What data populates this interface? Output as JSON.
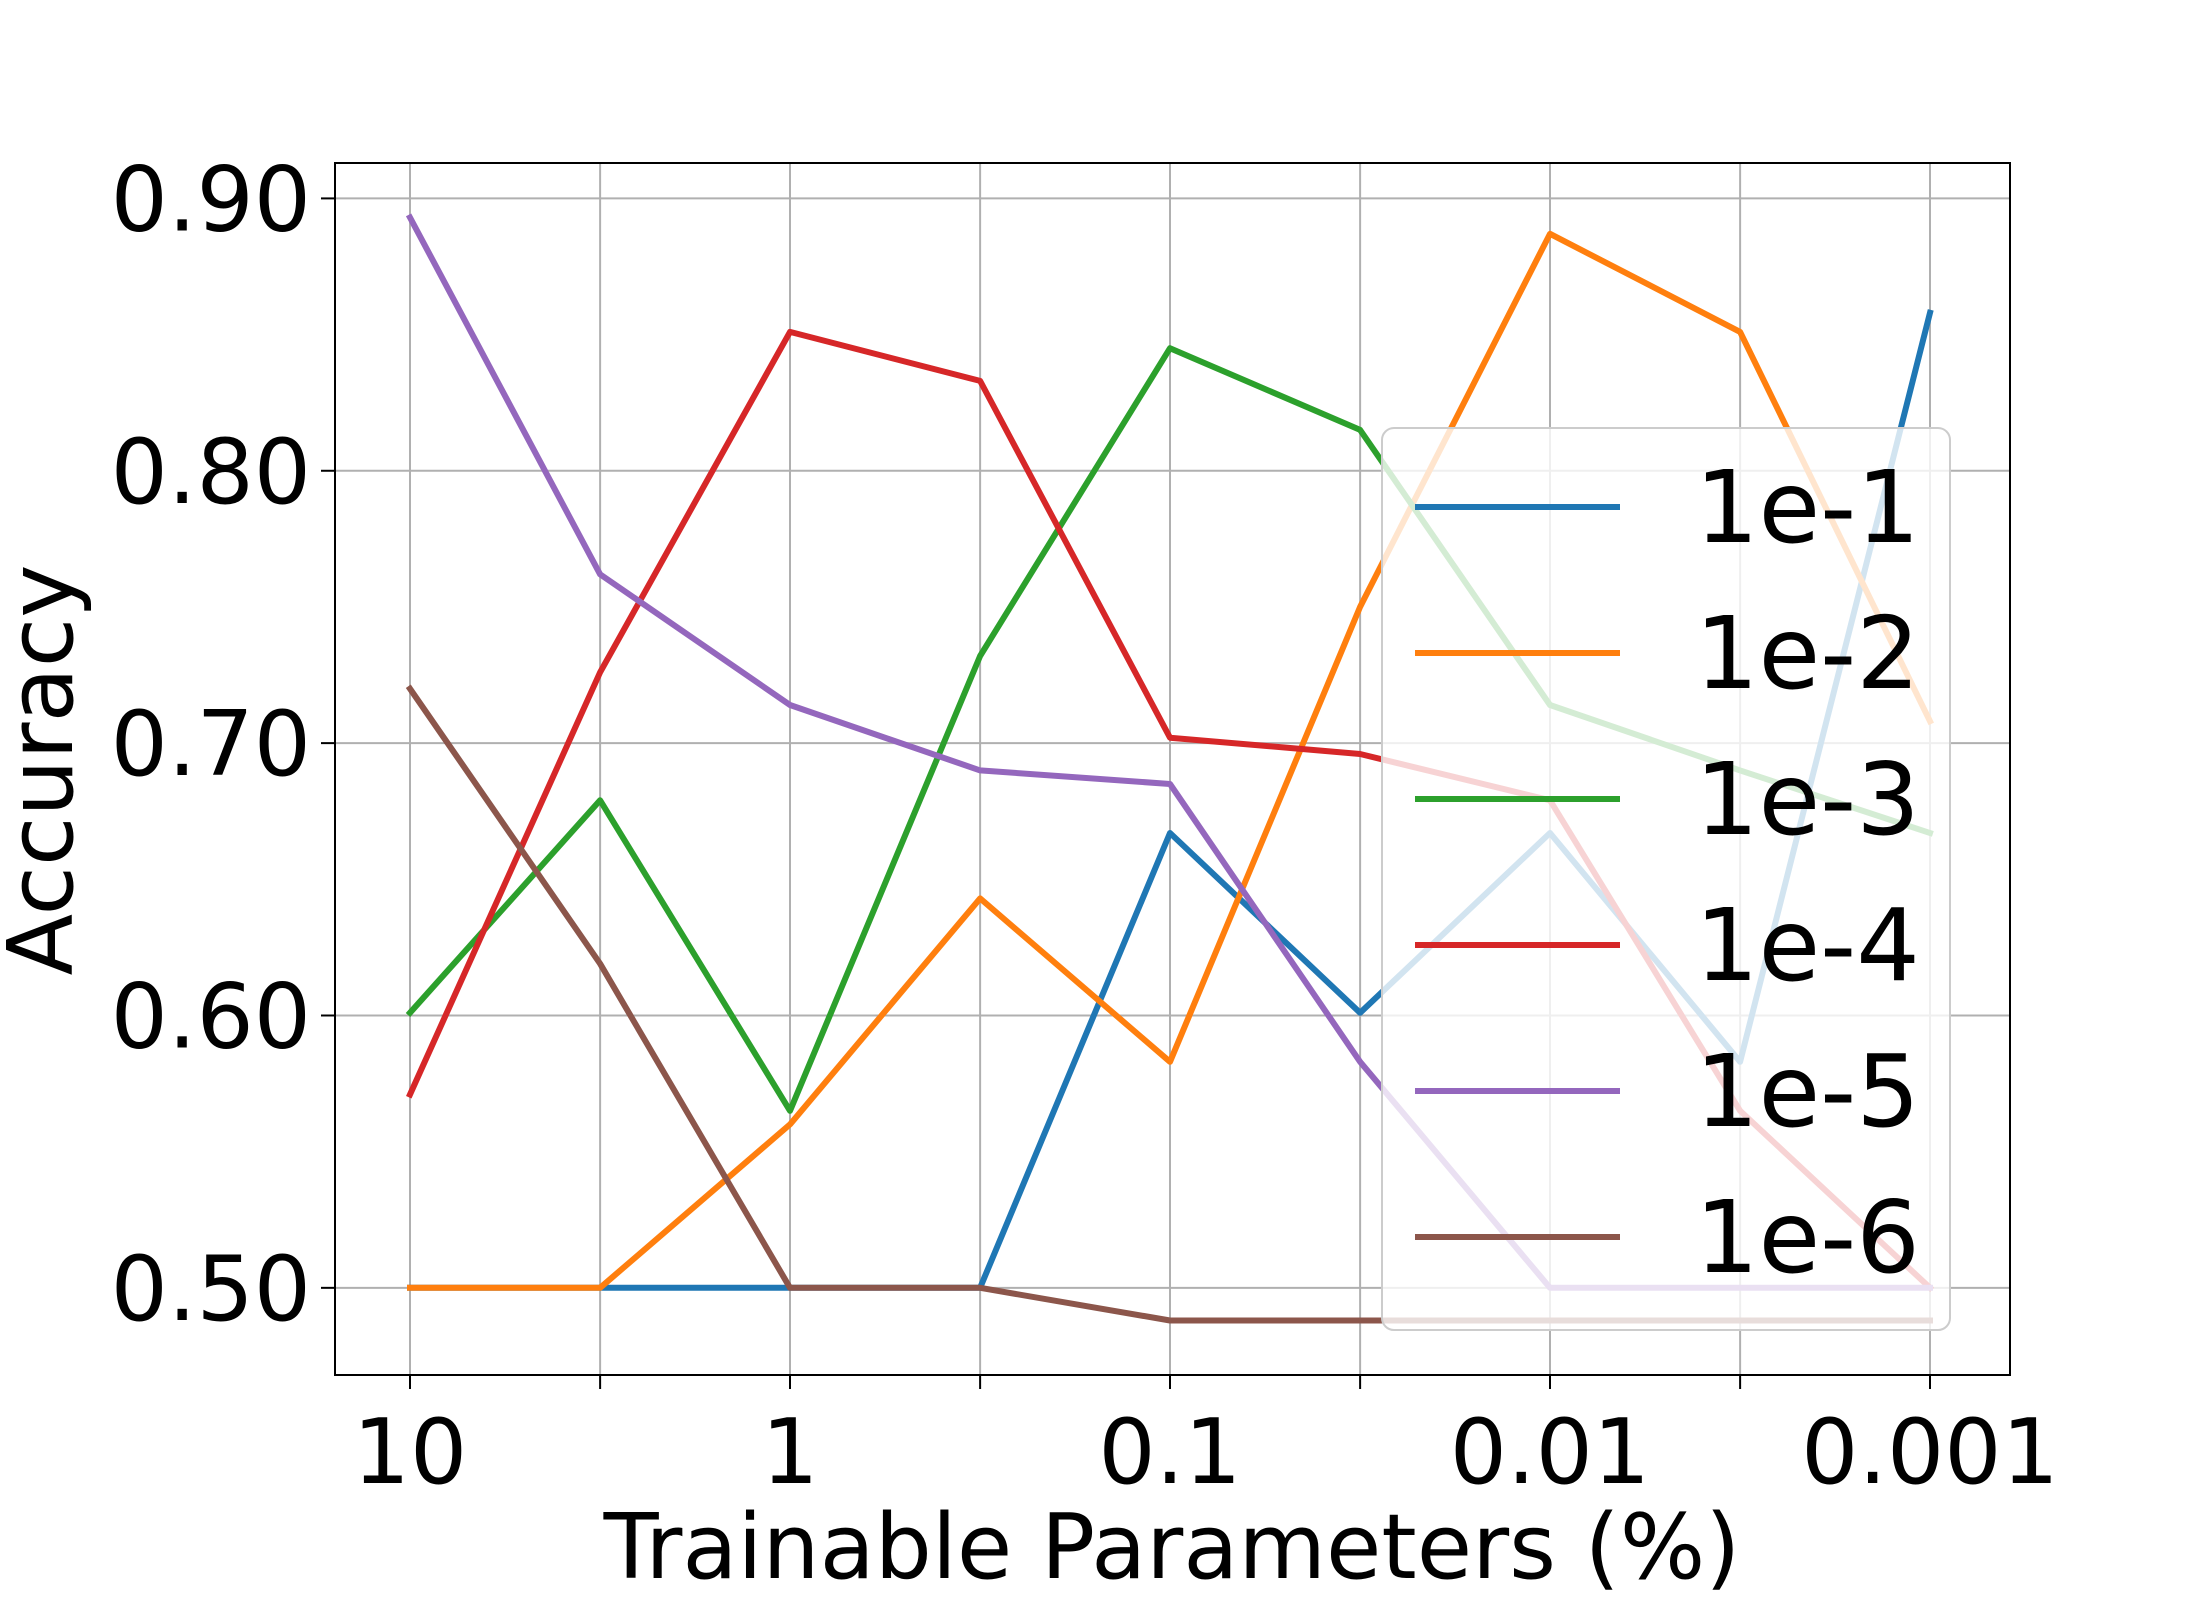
{
  "chart_data": {
    "type": "line",
    "title": "",
    "xlabel": "Trainable Parameters (%)",
    "ylabel": "Accuracy",
    "x_scale": "log",
    "x_direction": "decreasing",
    "x": [
      10,
      3.16,
      1,
      0.316,
      0.1,
      0.0316,
      0.01,
      0.00316,
      0.001
    ],
    "x_tick_values": [
      10,
      1,
      0.1,
      0.01,
      0.001
    ],
    "x_tick_labels": [
      "10",
      "1",
      "0.1",
      "0.01",
      "0.001"
    ],
    "x_minor_ticks": [
      3.16,
      0.316,
      0.0316,
      0.00316
    ],
    "ylim": [
      0.468,
      0.913
    ],
    "y_ticks": [
      0.5,
      0.6,
      0.7,
      0.8,
      0.9
    ],
    "y_tick_labels": [
      "0.50",
      "0.60",
      "0.70",
      "0.80",
      "0.90"
    ],
    "grid": true,
    "legend_position": "right",
    "series": [
      {
        "name": "1e-1",
        "color": "#1f77b4",
        "values": [
          0.5,
          0.5,
          0.5,
          0.5,
          0.667,
          0.601,
          0.667,
          0.583,
          0.858
        ]
      },
      {
        "name": "1e-2",
        "color": "#ff7f0e",
        "values": [
          0.5,
          0.5,
          0.56,
          0.643,
          0.583,
          0.75,
          0.887,
          0.851,
          0.708
        ]
      },
      {
        "name": "1e-3",
        "color": "#2ca02c",
        "values": [
          0.601,
          0.679,
          0.565,
          0.732,
          0.845,
          0.815,
          0.714,
          0.69,
          0.667
        ]
      },
      {
        "name": "1e-4",
        "color": "#d62728",
        "values": [
          0.571,
          0.726,
          0.851,
          0.833,
          0.702,
          0.696,
          0.679,
          0.565,
          0.5
        ]
      },
      {
        "name": "1e-5",
        "color": "#9467bd",
        "values": [
          0.893,
          0.762,
          0.714,
          0.69,
          0.685,
          0.583,
          0.5,
          0.5,
          0.5
        ]
      },
      {
        "name": "1e-6",
        "color": "#8c564b",
        "values": [
          0.72,
          0.619,
          0.5,
          0.5,
          0.488,
          0.488,
          0.488,
          0.488,
          0.488
        ]
      }
    ]
  }
}
